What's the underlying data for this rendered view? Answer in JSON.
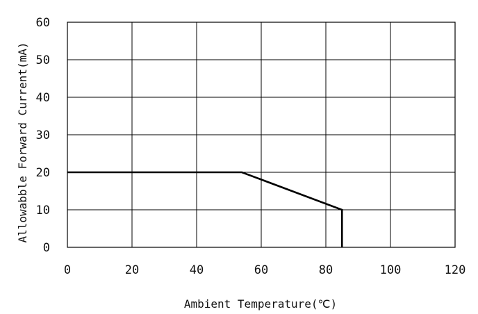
{
  "chart_data": {
    "type": "line",
    "xlabel": "Ambient Temperature(℃)",
    "ylabel": "Allowabble Forward Current(mA)",
    "xlim": [
      0,
      120
    ],
    "ylim": [
      0,
      60
    ],
    "x_ticks": [
      0,
      20,
      40,
      60,
      80,
      100,
      120
    ],
    "y_ticks": [
      0,
      10,
      20,
      30,
      40,
      50,
      60
    ],
    "grid": true,
    "series": [
      {
        "x": [
          0,
          54,
          85,
          85
        ],
        "y": [
          20,
          20,
          10,
          0
        ]
      }
    ]
  },
  "colors": {
    "axis": "#000000",
    "grid": "#000000",
    "line": "#000000",
    "background": "#ffffff"
  }
}
